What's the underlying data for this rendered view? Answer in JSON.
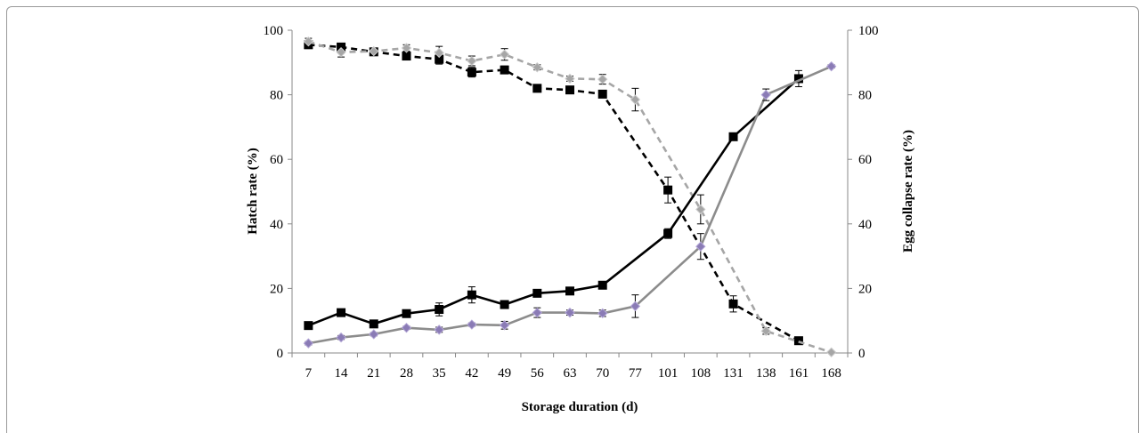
{
  "chart_data": {
    "type": "line",
    "xlabel": "Storage duration  (d)",
    "ylabel_left": "Hatch rate (%)",
    "ylabel_right": "Egg collapse rate (%)",
    "categories": [
      "7",
      "14",
      "21",
      "28",
      "35",
      "42",
      "49",
      "56",
      "63",
      "70",
      "77",
      "101",
      "108",
      "131",
      "138",
      "161",
      "168"
    ],
    "ylim_left": [
      0,
      100
    ],
    "ylim_right": [
      0,
      100
    ],
    "yticks_left": [
      "0",
      "20",
      "40",
      "60",
      "80",
      "100"
    ],
    "yticks_right": [
      "0",
      "20",
      "40",
      "60",
      "80",
      "100"
    ],
    "grid": false,
    "series": [
      {
        "axis": "left",
        "style": "dashed",
        "color": "#000000",
        "marker": "square",
        "values": [
          95.5,
          94.8,
          93.3,
          92.0,
          91.0,
          87.0,
          87.7,
          82.0,
          81.5,
          80.2,
          null,
          50.5,
          null,
          15.2,
          null,
          3.8,
          null
        ],
        "errors": [
          1.0,
          1.2,
          0.8,
          1.0,
          1.5,
          1.5,
          1.2,
          0.8,
          0.8,
          1.0,
          null,
          4.0,
          null,
          2.5,
          null,
          1.0,
          null
        ]
      },
      {
        "axis": "right",
        "style": "dashed",
        "color": "#a6a6a6",
        "marker": "diamond",
        "values": [
          96.5,
          93.2,
          93.5,
          94.5,
          93.0,
          90.5,
          92.5,
          88.5,
          85.0,
          84.8,
          78.5,
          null,
          44.5,
          null,
          6.8,
          null,
          0.2
        ],
        "errors": [
          1.0,
          1.5,
          1.0,
          1.0,
          2.0,
          1.5,
          1.8,
          0.8,
          0.8,
          1.5,
          3.5,
          null,
          4.5,
          null,
          1.0,
          null,
          0.3
        ]
      },
      {
        "axis": "left",
        "style": "solid",
        "color": "#000000",
        "marker": "square",
        "values": [
          8.5,
          12.5,
          9.0,
          12.2,
          13.5,
          18.0,
          15.0,
          18.5,
          19.2,
          21.0,
          null,
          37.0,
          null,
          67.0,
          null,
          85.0,
          null
        ],
        "errors": [
          1.0,
          1.0,
          0.8,
          1.0,
          2.0,
          2.5,
          1.2,
          1.0,
          0.8,
          1.0,
          null,
          1.5,
          null,
          0.8,
          null,
          2.5,
          null
        ]
      },
      {
        "axis": "right",
        "style": "solid",
        "color": "#8c8c8c",
        "marker": "diamond",
        "markerColor": "#8a7bb5",
        "values": [
          3.0,
          4.8,
          5.8,
          7.8,
          7.2,
          8.8,
          8.6,
          12.5,
          12.5,
          12.3,
          14.5,
          null,
          33.0,
          null,
          80.0,
          null,
          88.8
        ],
        "errors": [
          0.5,
          0.6,
          0.5,
          0.5,
          0.8,
          0.5,
          1.2,
          1.5,
          0.8,
          1.0,
          3.5,
          null,
          4.0,
          null,
          1.8,
          null,
          0.5
        ]
      }
    ]
  }
}
